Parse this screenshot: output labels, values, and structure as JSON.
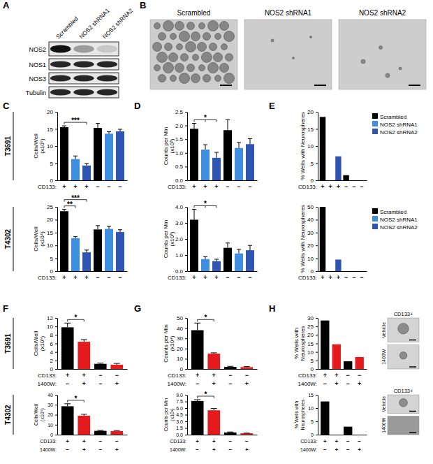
{
  "figure": {
    "panel_labels": [
      "A",
      "B",
      "C",
      "D",
      "E",
      "F",
      "G",
      "H"
    ],
    "row_labels": [
      "T3691",
      "T4302",
      "T3691",
      "T4302"
    ],
    "blot": {
      "lanes": [
        "Scrambled",
        "NOS2 shRNA1",
        "NOS2 shRNA2"
      ],
      "proteins": [
        "NOS2",
        "NOS1",
        "NOS3",
        "Tubulin"
      ]
    },
    "micrographs": {
      "labels": [
        "Scrambled",
        "NOS2 shRNA1",
        "NOS2 shRNA2"
      ]
    }
  },
  "chart_data": [
    {
      "type": "bar",
      "categories": [
        "+",
        "+",
        "+",
        "−",
        "−",
        "−"
      ],
      "xlabel": "CD133:",
      "values": [
        15.5,
        6.2,
        4.3,
        15.3,
        13.6,
        14.3
      ],
      "errors": [
        0.4,
        0.9,
        0.6,
        1.3,
        0.6,
        0.6
      ],
      "colors": [
        "#000000",
        "#3f8ee0",
        "#2f55b0",
        "#000000",
        "#3f8ee0",
        "#2f55b0"
      ],
      "ylim": [
        0,
        20
      ],
      "yticks": [
        0,
        5,
        10,
        15,
        20
      ],
      "ylabel": [
        "Cells/Well",
        "(x10⁵)"
      ],
      "annotations": [
        {
          "text": "***",
          "bars": [
            0,
            2
          ]
        }
      ]
    },
    {
      "type": "bar",
      "categories": [
        "+",
        "+",
        "+",
        "−",
        "−",
        "−"
      ],
      "xlabel": "CD133:",
      "values": [
        1.88,
        1.12,
        0.82,
        1.83,
        1.18,
        1.32
      ],
      "errors": [
        0.2,
        0.18,
        0.2,
        0.38,
        0.2,
        0.2
      ],
      "colors": [
        "#000000",
        "#3f8ee0",
        "#2f55b0",
        "#000000",
        "#3f8ee0",
        "#2f55b0"
      ],
      "ylim": [
        0,
        2.5
      ],
      "yticks": [
        {
          "value": 0,
          "label": "0.0"
        },
        {
          "value": 0.5,
          "label": "0.5"
        },
        {
          "value": 1,
          "label": "1.0"
        },
        {
          "value": 1.5,
          "label": "1.5"
        },
        {
          "value": 2,
          "label": "2.0"
        },
        {
          "value": 2.5,
          "label": "2.5"
        }
      ],
      "ylabel": [
        "Counts per Min",
        "(x10³)"
      ],
      "annotations": [
        {
          "text": "*",
          "bars": [
            0,
            1,
            2
          ]
        }
      ]
    },
    {
      "type": "bar",
      "categories": [
        "+",
        "+",
        "+",
        "−",
        "−",
        "−"
      ],
      "xlabel": "CD133:",
      "values": [
        18.5,
        0,
        7,
        1.5,
        0,
        0
      ],
      "colors": [
        "#000000",
        "#3f8ee0",
        "#2f55b0",
        "#000000",
        "#3f8ee0",
        "#2f55b0"
      ],
      "ylim": [
        0,
        20
      ],
      "yticks": [
        0,
        5,
        10,
        15,
        20
      ],
      "ylabel": [
        "% Wells with Neurospheres"
      ],
      "legend": "top-right",
      "legend_items": [
        {
          "name": "Scrambled",
          "color": "#000000"
        },
        {
          "name": "NOS2 shRNA1",
          "color": "#3f8ee0"
        },
        {
          "name": "NOS2 shRNA2",
          "color": "#2f55b0"
        }
      ]
    },
    {
      "type": "bar",
      "categories": [
        "+",
        "+",
        "+",
        "−",
        "−",
        "−"
      ],
      "xlabel": "CD133:",
      "values": [
        23.3,
        12.8,
        7.3,
        16.2,
        16.4,
        15.2
      ],
      "errors": [
        0.7,
        0.6,
        0.9,
        1.5,
        1.0,
        0.9
      ],
      "colors": [
        "#000000",
        "#3f8ee0",
        "#2f55b0",
        "#000000",
        "#3f8ee0",
        "#2f55b0"
      ],
      "ylim": [
        0,
        25
      ],
      "yticks": [
        0,
        5,
        10,
        15,
        20,
        25
      ],
      "ylabel": [
        "Cells/Well",
        "(x10⁴)"
      ],
      "annotations": [
        {
          "text": "**",
          "bars": [
            0,
            1
          ]
        },
        {
          "text": "***",
          "bars": [
            0,
            2
          ]
        }
      ]
    },
    {
      "type": "bar",
      "categories": [
        "+",
        "+",
        "+",
        "−",
        "−",
        "−"
      ],
      "xlabel": "CD133:",
      "values": [
        3.2,
        0.75,
        0.62,
        1.45,
        1.1,
        1.3
      ],
      "errors": [
        0.65,
        0.15,
        0.12,
        0.3,
        0.25,
        0.3
      ],
      "colors": [
        "#000000",
        "#3f8ee0",
        "#2f55b0",
        "#000000",
        "#3f8ee0",
        "#2f55b0"
      ],
      "ylim": [
        0,
        4
      ],
      "yticks": [
        {
          "value": 0,
          "label": "0.0"
        },
        {
          "value": 1,
          "label": "1.0"
        },
        {
          "value": 2,
          "label": "2.0"
        },
        {
          "value": 3,
          "label": "3.0"
        },
        {
          "value": 4,
          "label": "4.0"
        }
      ],
      "ylabel": [
        "Counts per Min",
        "(x10³)"
      ],
      "annotations": [
        {
          "text": "*",
          "bars": [
            0,
            1,
            2
          ]
        }
      ]
    },
    {
      "type": "bar",
      "categories": [
        "+",
        "+",
        "+",
        "−",
        "−",
        "−"
      ],
      "xlabel": "CD133:",
      "values": [
        50,
        0,
        9,
        0,
        0,
        0
      ],
      "colors": [
        "#000000",
        "#3f8ee0",
        "#2f55b0",
        "#000000",
        "#3f8ee0",
        "#2f55b0"
      ],
      "ylim": [
        0,
        50
      ],
      "yticks": [
        0,
        10,
        20,
        30,
        40,
        50
      ],
      "ylabel": [
        "% Wells with Neurospheres"
      ],
      "legend": "top-right",
      "legend_items": [
        {
          "name": "Scrambled",
          "color": "#000000"
        },
        {
          "name": "NOS2 shRNA1",
          "color": "#3f8ee0"
        },
        {
          "name": "NOS2 shRNA2",
          "color": "#2f55b0"
        }
      ]
    },
    {
      "type": "bar",
      "categories": [
        "+",
        "+",
        "−",
        "−"
      ],
      "xlabel": "CD133:",
      "categories2": [
        "−",
        "+",
        "−",
        "+"
      ],
      "xlabel2": "1400W:",
      "values": [
        9.8,
        6.4,
        1.2,
        1.0
      ],
      "errors": [
        1.0,
        0.5,
        0.2,
        0.3
      ],
      "colors": [
        "#000000",
        "#e41a1c",
        "#000000",
        "#e41a1c"
      ],
      "ylim": [
        0,
        12
      ],
      "yticks": [
        0,
        2,
        4,
        6,
        8,
        10,
        12
      ],
      "ylabel": [
        "Cells/Well",
        "(x10⁵)"
      ],
      "annotations": [
        {
          "text": "*",
          "bars": [
            0,
            1
          ]
        }
      ]
    },
    {
      "type": "bar",
      "categories": [
        "+",
        "+",
        "−",
        "−"
      ],
      "xlabel": "CD133:",
      "categories2": [
        "−",
        "+",
        "−",
        "+"
      ],
      "xlabel2": "1400W:",
      "values": [
        38,
        15,
        2,
        1.8
      ],
      "errors": [
        7,
        0.8,
        0.6,
        0.5
      ],
      "colors": [
        "#000000",
        "#e41a1c",
        "#000000",
        "#e41a1c"
      ],
      "ylim": [
        0,
        50
      ],
      "yticks": [
        0,
        10,
        20,
        30,
        40,
        50
      ],
      "ylabel": [
        "Counts per Min",
        "(x10⁴)"
      ],
      "annotations": [
        {
          "text": "*",
          "bars": [
            0,
            1
          ]
        }
      ]
    },
    {
      "type": "bar",
      "categories": [
        "+",
        "+",
        "−",
        "−"
      ],
      "xlabel": "CD133:",
      "categories2": [
        "−",
        "+",
        "−",
        "+"
      ],
      "xlabel2": "1400W:",
      "values": [
        28.5,
        14.5,
        4.5,
        7
      ],
      "colors": [
        "#000000",
        "#e41a1c",
        "#000000",
        "#e41a1c"
      ],
      "ylim": [
        0,
        30
      ],
      "yticks": [
        0,
        5,
        10,
        15,
        20,
        25,
        30
      ],
      "ylabel": [
        "% Wells with",
        "Neurospheres"
      ],
      "inset": {
        "title": "CD133+",
        "labels": [
          "Vehicle",
          "1400W"
        ]
      }
    },
    {
      "type": "bar",
      "categories": [
        "+",
        "+",
        "−",
        "−"
      ],
      "xlabel": "CD133:",
      "categories2": [
        "−",
        "+",
        "−",
        "+"
      ],
      "xlabel2": "1400W:",
      "values": [
        28.5,
        19,
        3.8,
        3.5
      ],
      "errors": [
        2.5,
        1.5,
        0.5,
        0.6
      ],
      "colors": [
        "#000000",
        "#e41a1c",
        "#000000",
        "#e41a1c"
      ],
      "ylim": [
        0,
        40
      ],
      "yticks": [
        0,
        10,
        20,
        30,
        40
      ],
      "ylabel": [
        "Cells/Well",
        "(x10⁵)"
      ],
      "annotations": [
        {
          "text": "*",
          "bars": [
            0,
            1
          ]
        }
      ]
    },
    {
      "type": "bar",
      "categories": [
        "+",
        "+",
        "−",
        "−"
      ],
      "xlabel": "CD133:",
      "categories2": [
        "−",
        "+",
        "−",
        "+"
      ],
      "xlabel2": "1400W:",
      "values": [
        7.6,
        5.5,
        0.5,
        0.3
      ],
      "errors": [
        0.3,
        0.4,
        0.1,
        0.05
      ],
      "colors": [
        "#000000",
        "#e41a1c",
        "#000000",
        "#e41a1c"
      ],
      "ylim": [
        0,
        9
      ],
      "yticks": [
        {
          "value": 0,
          "label": "0.0"
        },
        {
          "value": 1.5,
          "label": "1.5"
        },
        {
          "value": 3,
          "label": "3.0"
        },
        {
          "value": 4.5,
          "label": "4.5"
        },
        {
          "value": 6,
          "label": "6.0"
        },
        {
          "value": 7.5,
          "label": "7.5"
        },
        {
          "value": 9,
          "label": "9.0"
        }
      ],
      "ylabel": [
        "Counts per Min",
        "(x10³)"
      ],
      "annotations": [
        {
          "text": "*",
          "bars": [
            0,
            1
          ]
        }
      ]
    },
    {
      "type": "bar",
      "categories": [
        "+",
        "+",
        "−",
        "−"
      ],
      "xlabel": "CD133:",
      "categories2": [
        "−",
        "+",
        "−",
        "+"
      ],
      "xlabel2": "1400W:",
      "values": [
        12.5,
        0,
        3,
        0
      ],
      "colors": [
        "#000000",
        "#e41a1c",
        "#000000",
        "#e41a1c"
      ],
      "ylim": [
        0,
        15
      ],
      "yticks": [
        0,
        5,
        10,
        15
      ],
      "ylabel": [
        "% Wells with",
        "Neurospheres"
      ],
      "inset": {
        "title": "CD133+",
        "labels": [
          "Vehicle",
          "1400W"
        ]
      }
    }
  ]
}
